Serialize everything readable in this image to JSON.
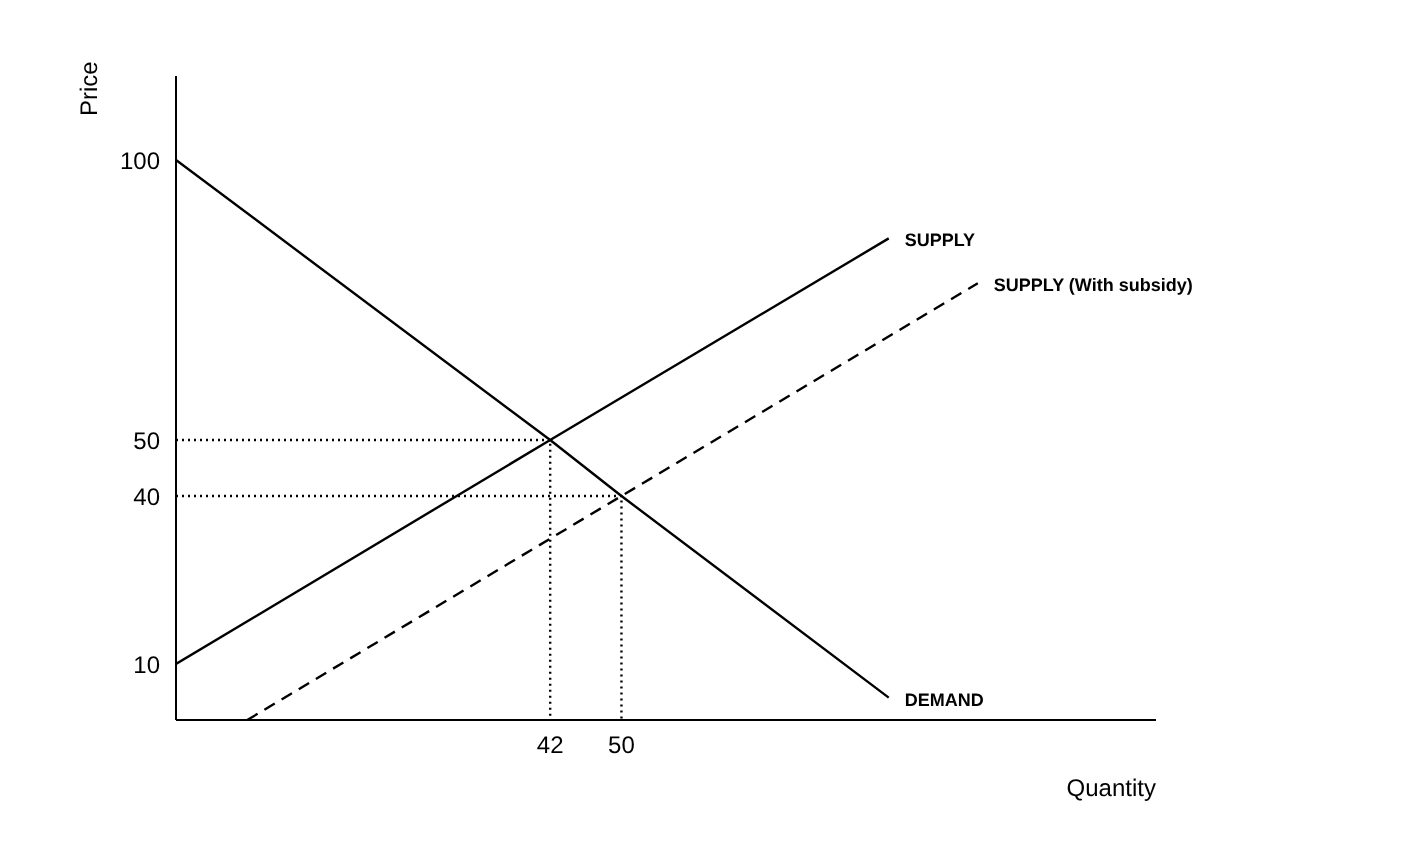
{
  "chart_data": {
    "type": "line",
    "xlabel": "Quantity",
    "ylabel": "Price",
    "xlim": [
      0,
      110
    ],
    "ylim": [
      0,
      115
    ],
    "xticks": [
      42,
      50
    ],
    "yticks": [
      10,
      40,
      50,
      100
    ],
    "grid": false,
    "legend": false,
    "marker": "none",
    "series": [
      {
        "name": "SUPPLY",
        "color": "#000000",
        "line_style": "solid",
        "x": [
          0,
          42,
          80
        ],
        "values": [
          10,
          50,
          86
        ]
      },
      {
        "name": "SUPPLY (With subsidy)",
        "color": "#000000",
        "line_style": "dashed",
        "x": [
          8,
          50,
          90
        ],
        "values": [
          0,
          40,
          78
        ]
      },
      {
        "name": "DEMAND",
        "color": "#000000",
        "line_style": "solid",
        "x": [
          0,
          42,
          50,
          80
        ],
        "values": [
          100,
          50,
          40,
          4
        ]
      },
      {
        "color": "#000000",
        "line_style": "dotted",
        "x": [
          0,
          42,
          42
        ],
        "values": [
          50,
          50,
          0
        ]
      },
      {
        "color": "#000000",
        "line_style": "dotted",
        "x": [
          0,
          50,
          50
        ],
        "values": [
          40,
          40,
          0
        ]
      }
    ]
  }
}
